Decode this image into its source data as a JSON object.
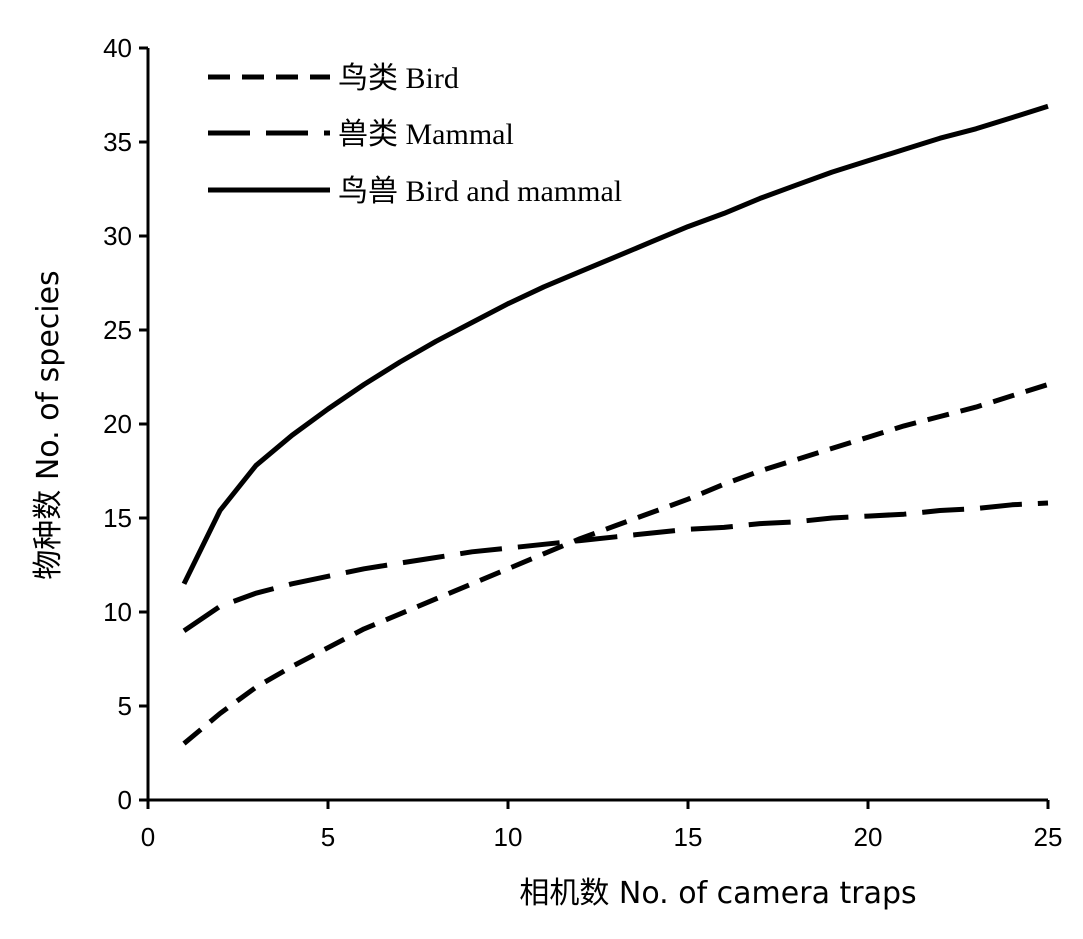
{
  "chart_data": {
    "type": "line",
    "title": "",
    "xlabel": "相机数 No. of camera traps",
    "ylabel": "物种数 No. of species",
    "xlim": [
      0,
      25
    ],
    "ylim": [
      0,
      40
    ],
    "xticks": [
      0,
      5,
      10,
      15,
      20,
      25
    ],
    "yticks": [
      0,
      5,
      10,
      15,
      20,
      25,
      30,
      35,
      40
    ],
    "grid": false,
    "legend_position": "top-left",
    "x": [
      1,
      2,
      3,
      4,
      5,
      6,
      7,
      8,
      9,
      10,
      11,
      12,
      13,
      14,
      15,
      16,
      17,
      18,
      19,
      20,
      21,
      22,
      23,
      24,
      25
    ],
    "series": [
      {
        "name": "鸟类  Bird",
        "dash": "short-dash",
        "color": "#000000",
        "values": [
          3.0,
          4.6,
          6.0,
          7.1,
          8.1,
          9.1,
          9.9,
          10.7,
          11.5,
          12.3,
          13.1,
          13.9,
          14.6,
          15.3,
          16.0,
          16.8,
          17.5,
          18.1,
          18.7,
          19.3,
          19.9,
          20.4,
          20.9,
          21.5,
          22.1
        ]
      },
      {
        "name": "兽类  Mammal",
        "dash": "long-dash",
        "color": "#000000",
        "values": [
          9.0,
          10.3,
          11.0,
          11.5,
          11.9,
          12.3,
          12.6,
          12.9,
          13.2,
          13.4,
          13.6,
          13.8,
          14.0,
          14.2,
          14.4,
          14.5,
          14.7,
          14.8,
          15.0,
          15.1,
          15.2,
          15.4,
          15.5,
          15.7,
          15.8
        ]
      },
      {
        "name": "鸟兽  Bird and mammal",
        "dash": "solid",
        "color": "#000000",
        "values": [
          11.5,
          15.4,
          17.8,
          19.4,
          20.8,
          22.1,
          23.3,
          24.4,
          25.4,
          26.4,
          27.3,
          28.1,
          28.9,
          29.7,
          30.5,
          31.2,
          32.0,
          32.7,
          33.4,
          34.0,
          34.6,
          35.2,
          35.7,
          36.3,
          36.9
        ]
      }
    ]
  }
}
